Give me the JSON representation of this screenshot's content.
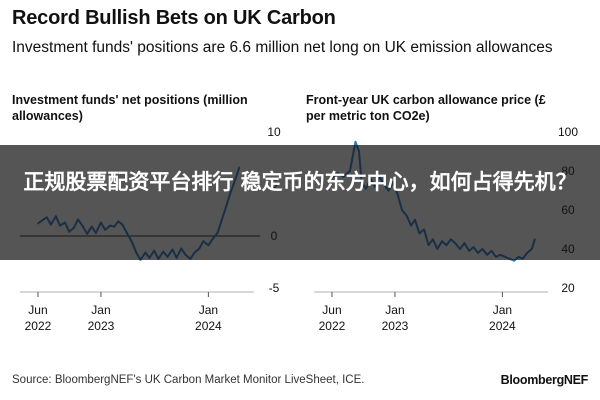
{
  "header": {
    "title": "Record Bullish Bets on UK Carbon",
    "subtitle": "Investment funds' positions are 6.6 million net long on UK emission allowances"
  },
  "colors": {
    "line": "#2a78c8",
    "zero": "#222222",
    "text": "#111111"
  },
  "chart_data": [
    {
      "type": "line",
      "title": "Investment funds' net positions (million allowances)",
      "x_ticks": [
        {
          "date": "2022-06-01",
          "label": [
            "Jun",
            "2022"
          ]
        },
        {
          "date": "2023-01-01",
          "label": [
            "Jan",
            "2023"
          ]
        },
        {
          "date": "2024-01-01",
          "label": [
            "Jan",
            "2024"
          ]
        }
      ],
      "y_ticks": [
        10,
        5,
        0,
        -5
      ],
      "ylim": [
        -5,
        10
      ],
      "zero_line": true,
      "series": [
        {
          "points": [
            [
              "2022-06-01",
              1.2
            ],
            [
              "2022-06-15",
              1.5
            ],
            [
              "2022-07-01",
              1.8
            ],
            [
              "2022-07-15",
              1.1
            ],
            [
              "2022-08-01",
              1.9
            ],
            [
              "2022-08-15",
              1.0
            ],
            [
              "2022-09-01",
              1.3
            ],
            [
              "2022-09-15",
              0.4
            ],
            [
              "2022-10-01",
              0.8
            ],
            [
              "2022-10-15",
              1.6
            ],
            [
              "2022-11-01",
              0.9
            ],
            [
              "2022-11-15",
              0.2
            ],
            [
              "2022-12-01",
              0.9
            ],
            [
              "2022-12-15",
              0.3
            ],
            [
              "2023-01-01",
              1.3
            ],
            [
              "2023-01-15",
              0.6
            ],
            [
              "2023-02-01",
              1.0
            ],
            [
              "2023-02-15",
              0.9
            ],
            [
              "2023-03-01",
              1.4
            ],
            [
              "2023-03-15",
              1.1
            ],
            [
              "2023-04-01",
              0.2
            ],
            [
              "2023-04-15",
              -0.5
            ],
            [
              "2023-05-01",
              -1.6
            ],
            [
              "2023-05-15",
              -2.3
            ],
            [
              "2023-06-01",
              -1.6
            ],
            [
              "2023-06-15",
              -2.1
            ],
            [
              "2023-07-01",
              -1.4
            ],
            [
              "2023-07-15",
              -2.2
            ],
            [
              "2023-08-01",
              -1.5
            ],
            [
              "2023-08-15",
              -2.0
            ],
            [
              "2023-09-01",
              -1.3
            ],
            [
              "2023-09-15",
              -2.1
            ],
            [
              "2023-10-01",
              -1.2
            ],
            [
              "2023-10-15",
              -1.8
            ],
            [
              "2023-11-01",
              -2.2
            ],
            [
              "2023-11-15",
              -1.6
            ],
            [
              "2023-12-01",
              -1.2
            ],
            [
              "2023-12-15",
              -0.5
            ],
            [
              "2024-01-01",
              -0.9
            ],
            [
              "2024-01-15",
              -0.3
            ],
            [
              "2024-02-01",
              0.3
            ],
            [
              "2024-02-15",
              1.5
            ],
            [
              "2024-03-01",
              2.8
            ],
            [
              "2024-03-15",
              4.1
            ],
            [
              "2024-04-01",
              5.4
            ],
            [
              "2024-04-15",
              6.6
            ]
          ]
        }
      ]
    },
    {
      "type": "line",
      "title": "Front-year UK carbon allowance price (£ per metric ton CO2e)",
      "x_ticks": [
        {
          "date": "2022-06-01",
          "label": [
            "Jun",
            "2022"
          ]
        },
        {
          "date": "2023-01-01",
          "label": [
            "Jan",
            "2023"
          ]
        },
        {
          "date": "2024-01-01",
          "label": [
            "Jan",
            "2024"
          ]
        }
      ],
      "y_ticks": [
        100,
        80,
        60,
        40,
        20
      ],
      "ylim": [
        20,
        100
      ],
      "zero_line": false,
      "series": [
        {
          "points": [
            [
              "2022-06-01",
              76
            ],
            [
              "2022-06-20",
              79
            ],
            [
              "2022-07-10",
              77
            ],
            [
              "2022-08-01",
              80
            ],
            [
              "2022-08-20",
              95
            ],
            [
              "2022-09-01",
              90
            ],
            [
              "2022-09-10",
              74
            ],
            [
              "2022-09-25",
              71
            ],
            [
              "2022-10-10",
              76
            ],
            [
              "2022-10-25",
              72
            ],
            [
              "2022-11-10",
              77
            ],
            [
              "2022-11-25",
              73
            ],
            [
              "2022-12-10",
              70
            ],
            [
              "2022-12-25",
              74
            ],
            [
              "2023-01-10",
              68
            ],
            [
              "2023-01-25",
              60
            ],
            [
              "2023-02-10",
              57
            ],
            [
              "2023-02-25",
              52
            ],
            [
              "2023-03-10",
              55
            ],
            [
              "2023-03-25",
              48
            ],
            [
              "2023-04-10",
              50
            ],
            [
              "2023-04-25",
              42
            ],
            [
              "2023-05-10",
              45
            ],
            [
              "2023-05-25",
              40
            ],
            [
              "2023-06-10",
              44
            ],
            [
              "2023-06-25",
              42
            ],
            [
              "2023-07-10",
              45
            ],
            [
              "2023-07-25",
              43
            ],
            [
              "2023-08-10",
              40
            ],
            [
              "2023-08-25",
              43
            ],
            [
              "2023-09-10",
              39
            ],
            [
              "2023-09-25",
              41
            ],
            [
              "2023-10-10",
              38
            ],
            [
              "2023-10-25",
              40
            ],
            [
              "2023-11-10",
              37
            ],
            [
              "2023-11-25",
              39
            ],
            [
              "2023-12-10",
              36
            ],
            [
              "2023-12-25",
              37
            ],
            [
              "2024-01-10",
              36
            ],
            [
              "2024-01-25",
              35
            ],
            [
              "2024-02-10",
              34
            ],
            [
              "2024-02-25",
              36
            ],
            [
              "2024-03-10",
              35
            ],
            [
              "2024-03-25",
              38
            ],
            [
              "2024-04-10",
              40
            ],
            [
              "2024-04-20",
              45
            ]
          ]
        }
      ]
    }
  ],
  "overlay": {
    "text": "正规股票配资平台排行 稳定币的东方中心，如何占得先机？"
  },
  "footer": {
    "source": "Source: BloombergNEF's UK Carbon Market Monitor LiveSheet, ICE.",
    "brand": "BloombergNEF"
  }
}
